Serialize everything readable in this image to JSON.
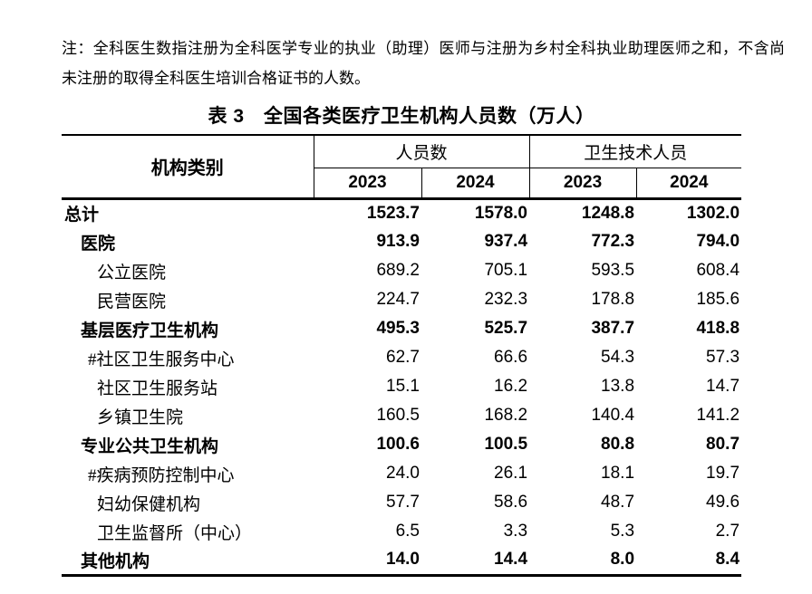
{
  "note": "注：全科医生数指注册为全科医学专业的执业（助理）医师与注册为乡村全科执业助理医师之和，不含尚未注册的取得全科医生培训合格证书的人数。",
  "table": {
    "title": "表 3　全国各类医疗卫生机构人员数（万人）",
    "unit": "万人",
    "header": {
      "category": "机构类别",
      "groups": [
        {
          "label": "人员数",
          "years": [
            "2023",
            "2024"
          ]
        },
        {
          "label": "卫生技术人员",
          "years": [
            "2023",
            "2024"
          ]
        }
      ]
    },
    "rows": [
      {
        "label": "总计",
        "indent": 0,
        "bold": true,
        "values": [
          "1523.7",
          "1578.0",
          "1248.8",
          "1302.0"
        ]
      },
      {
        "label": "医院",
        "indent": 1,
        "bold": true,
        "values": [
          "913.9",
          "937.4",
          "772.3",
          "794.0"
        ]
      },
      {
        "label": "公立医院",
        "indent": 2,
        "bold": false,
        "values": [
          "689.2",
          "705.1",
          "593.5",
          "608.4"
        ]
      },
      {
        "label": "民营医院",
        "indent": 2,
        "bold": false,
        "values": [
          "224.7",
          "232.3",
          "178.8",
          "185.6"
        ]
      },
      {
        "label": "基层医疗卫生机构",
        "indent": 1,
        "bold": true,
        "values": [
          "495.3",
          "525.7",
          "387.7",
          "418.8"
        ]
      },
      {
        "label": "#社区卫生服务中心",
        "indent": 2,
        "bold": false,
        "values": [
          "62.7",
          "66.6",
          "54.3",
          "57.3"
        ]
      },
      {
        "label": "社区卫生服务站",
        "indent": 2,
        "bold": false,
        "values": [
          "15.1",
          "16.2",
          "13.8",
          "14.7"
        ]
      },
      {
        "label": "乡镇卫生院",
        "indent": 2,
        "bold": false,
        "values": [
          "160.5",
          "168.2",
          "140.4",
          "141.2"
        ]
      },
      {
        "label": "专业公共卫生机构",
        "indent": 1,
        "bold": true,
        "values": [
          "100.6",
          "100.5",
          "80.8",
          "80.7"
        ]
      },
      {
        "label": "#疾病预防控制中心",
        "indent": 2,
        "bold": false,
        "values": [
          "24.0",
          "26.1",
          "18.1",
          "19.7"
        ]
      },
      {
        "label": "妇幼保健机构",
        "indent": 2,
        "bold": false,
        "values": [
          "57.7",
          "58.6",
          "48.7",
          "49.6"
        ]
      },
      {
        "label": "卫生监督所（中心）",
        "indent": 2,
        "bold": false,
        "values": [
          "6.5",
          "3.3",
          "5.3",
          "2.7"
        ]
      },
      {
        "label": "其他机构",
        "indent": 1,
        "bold": true,
        "values": [
          "14.0",
          "14.4",
          "8.0",
          "8.4"
        ]
      }
    ]
  }
}
